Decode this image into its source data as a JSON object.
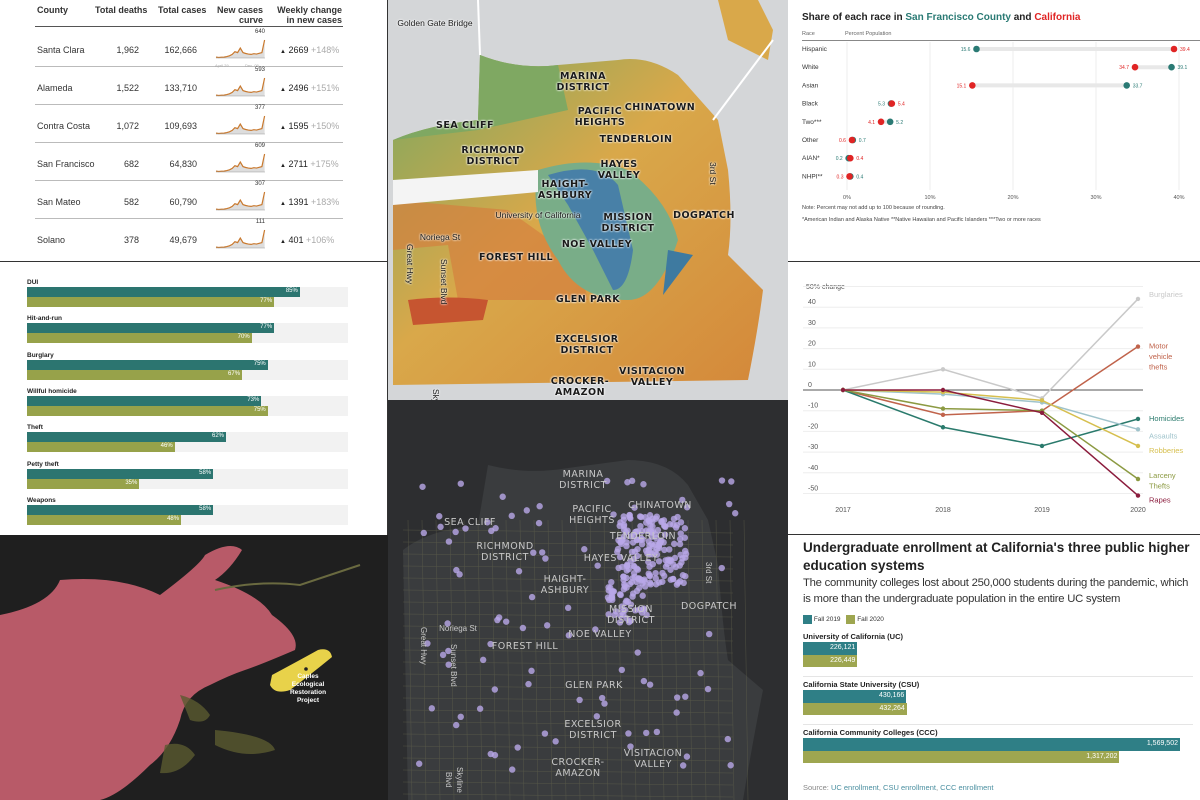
{
  "covid_table": {
    "headers": [
      "County",
      "Total deaths",
      "Total cases",
      "New cases curve",
      "Weekly change in new cases"
    ],
    "header_curve": [
      "New cases",
      "curve"
    ],
    "header_weekly": [
      "Weekly change",
      "in new cases"
    ],
    "curve_axis": [
      "April 29",
      "Dec. 09"
    ],
    "rows": [
      {
        "county": "Santa Clara",
        "deaths": "1,962",
        "cases": "162,666",
        "peak": "640",
        "change": "2669",
        "pct": "+148%"
      },
      {
        "county": "Alameda",
        "deaths": "1,522",
        "cases": "133,710",
        "peak": "593",
        "change": "2496",
        "pct": "+151%"
      },
      {
        "county": "Contra Costa",
        "deaths": "1,072",
        "cases": "109,693",
        "peak": "377",
        "change": "1595",
        "pct": "+150%"
      },
      {
        "county": "San Francisco",
        "deaths": "682",
        "cases": "64,830",
        "peak": "609",
        "change": "2711",
        "pct": "+175%"
      },
      {
        "county": "San Mateo",
        "deaths": "582",
        "cases": "60,790",
        "peak": "307",
        "change": "1391",
        "pct": "+183%"
      },
      {
        "county": "Solano",
        "deaths": "378",
        "cases": "49,679",
        "peak": "111",
        "change": "401",
        "pct": "+106%"
      }
    ],
    "up_icon": "triangle-up"
  },
  "chart_data": [
    {
      "type": "scatter",
      "title_parts": [
        "Share of each race in ",
        "San Francisco County",
        " and ",
        "California"
      ],
      "col_headers": [
        "Race",
        "Percent Population"
      ],
      "colors": {
        "sf": "#2a7a74",
        "ca": "#e02424"
      },
      "categories": [
        "Hispanic",
        "White",
        "Asian",
        "Black",
        "Two***",
        "Other",
        "AIAN*",
        "NHPI**"
      ],
      "series": [
        {
          "name": "San Francisco County",
          "values": [
            15.6,
            39.1,
            33.7,
            5.3,
            5.2,
            0.7,
            0.2,
            0.4
          ]
        },
        {
          "name": "California",
          "values": [
            39.4,
            34.7,
            15.1,
            5.4,
            4.1,
            0.6,
            0.4,
            0.3
          ]
        }
      ],
      "x_ticks": [
        "0%",
        "10%",
        "20%",
        "30%",
        "40%"
      ],
      "xlim": [
        0,
        40
      ],
      "notes": [
        "Note: Percent may not add up to 100 because of rounding.",
        "*American Indian and Alaska Native **Native Hawaiian and Pacific Islanders ***Two or more races"
      ]
    },
    {
      "type": "bar",
      "categories": [
        "DUI",
        "Hit-and-run",
        "Burglary",
        "Willful homicide",
        "Theft",
        "Petty theft",
        "Weapons"
      ],
      "series": [
        {
          "values": [
            85,
            77,
            75,
            73,
            62,
            58,
            58
          ],
          "labels": [
            "85%",
            "77%",
            "75%",
            "73%",
            "62%",
            "58%",
            "58%"
          ]
        },
        {
          "values": [
            77,
            70,
            67,
            75,
            46,
            35,
            48
          ],
          "labels": [
            "77%",
            "70%",
            "67%",
            "75%",
            "46%",
            "35%",
            "48%"
          ]
        }
      ],
      "colors": [
        "#2c7570",
        "#97a24a"
      ],
      "xlim": [
        0,
        100
      ]
    },
    {
      "type": "line",
      "ylabel": "50% change",
      "x": [
        "2017",
        "2018",
        "2019",
        "2020"
      ],
      "y_ticks": [
        40,
        30,
        20,
        10,
        0,
        -10,
        -20,
        -30,
        -40,
        -50
      ],
      "ylim": [
        -55,
        50
      ],
      "series": [
        {
          "name": "Burglaries",
          "color": "#c9c9c9",
          "values": [
            0,
            10,
            -4,
            44
          ]
        },
        {
          "name": "Motor vehicle thefts",
          "label_lines": [
            "Motor",
            "vehicle",
            "thefts"
          ],
          "color": "#c0634b",
          "values": [
            0,
            -12,
            -10,
            21
          ]
        },
        {
          "name": "Homicides",
          "color": "#2a7a6c",
          "values": [
            0,
            -18,
            -27,
            -14
          ]
        },
        {
          "name": "Assaults",
          "color": "#9fc3cb",
          "values": [
            0,
            -2,
            -6,
            -19
          ]
        },
        {
          "name": "Robberies",
          "color": "#d6bf4e",
          "values": [
            0,
            -1,
            -5,
            -27
          ]
        },
        {
          "name": "Larceny Thefts",
          "label_lines": [
            "Larceny",
            "Thefts"
          ],
          "color": "#8c9a42",
          "values": [
            0,
            -9,
            -10,
            -43
          ]
        },
        {
          "name": "Rapes",
          "color": "#8b1c3d",
          "values": [
            0,
            0,
            -11,
            -51
          ]
        }
      ]
    },
    {
      "type": "bar",
      "title": "Undergraduate enrollment at California's three public higher education systems",
      "subtitle": "The community colleges lost about 250,000 students during the pandemic, which is more than the undergraduate population in the entire UC system",
      "categories": [
        "University of California (UC)",
        "California State University (CSU)",
        "California Community Colleges (CCC)"
      ],
      "series": [
        {
          "name": "Fall 2019",
          "color": "#2f7f86",
          "values": [
            226121,
            430166,
            1569502
          ],
          "labels": [
            "226,121",
            "430,166",
            "1,569,502"
          ]
        },
        {
          "name": "Fall 2020",
          "color": "#9ea650",
          "values": [
            226449,
            432264,
            1317202
          ],
          "labels": [
            "226,449",
            "432,264",
            "1,317,202"
          ]
        }
      ],
      "source_prefix": "Source: ",
      "source_links": [
        "UC enrollment",
        ", ",
        "CSU enrollment",
        ", ",
        "CCC enrollment"
      ]
    }
  ],
  "map_choropleth": {
    "labels": [
      "Golden Gate Bridge",
      "MARINA DISTRICT",
      "PACIFIC HEIGHTS",
      "CHINATOWN",
      "SEA CLIFF",
      "RICHMOND DISTRICT",
      "TENDERLOIN",
      "HAYES VALLEY",
      "HAIGHT-ASHBURY",
      "University of California",
      "MISSION DISTRICT",
      "DOGPATCH",
      "3rd St",
      "Noriega St",
      "Great Hwy",
      "Sunset Blvd",
      "NOE VALLEY",
      "FOREST HILL",
      "GLEN PARK",
      "EXCELSIOR DISTRICT",
      "CROCKER-AMAZON",
      "VISITACION VALLEY",
      "Skyline"
    ]
  },
  "map_dots": {
    "labels": [
      "MARINA DISTRICT",
      "PACIFIC HEIGHTS",
      "CHINATOWN",
      "SEA CLIFF",
      "RICHMOND DISTRICT",
      "TENDERLOIN",
      "HAYES VALLEY",
      "HAIGHT-ASHBURY",
      "MISSION DISTRICT",
      "3rd St",
      "DOGPATCH",
      "Noriega St",
      "Great Hwy",
      "Sunset Blvd",
      "NOE VALLEY",
      "FOREST HILL",
      "GLEN PARK",
      "EXCELSIOR DISTRICT",
      "CROCKER-AMAZON",
      "VISITACION VALLEY",
      "Skyline Blvd"
    ],
    "dot_color": "#b9a8e8"
  },
  "map_fire": {
    "label": "Caples Ecological Restoration Project",
    "colors": {
      "fire": "#b85a68",
      "project": "#e8d24a"
    }
  }
}
